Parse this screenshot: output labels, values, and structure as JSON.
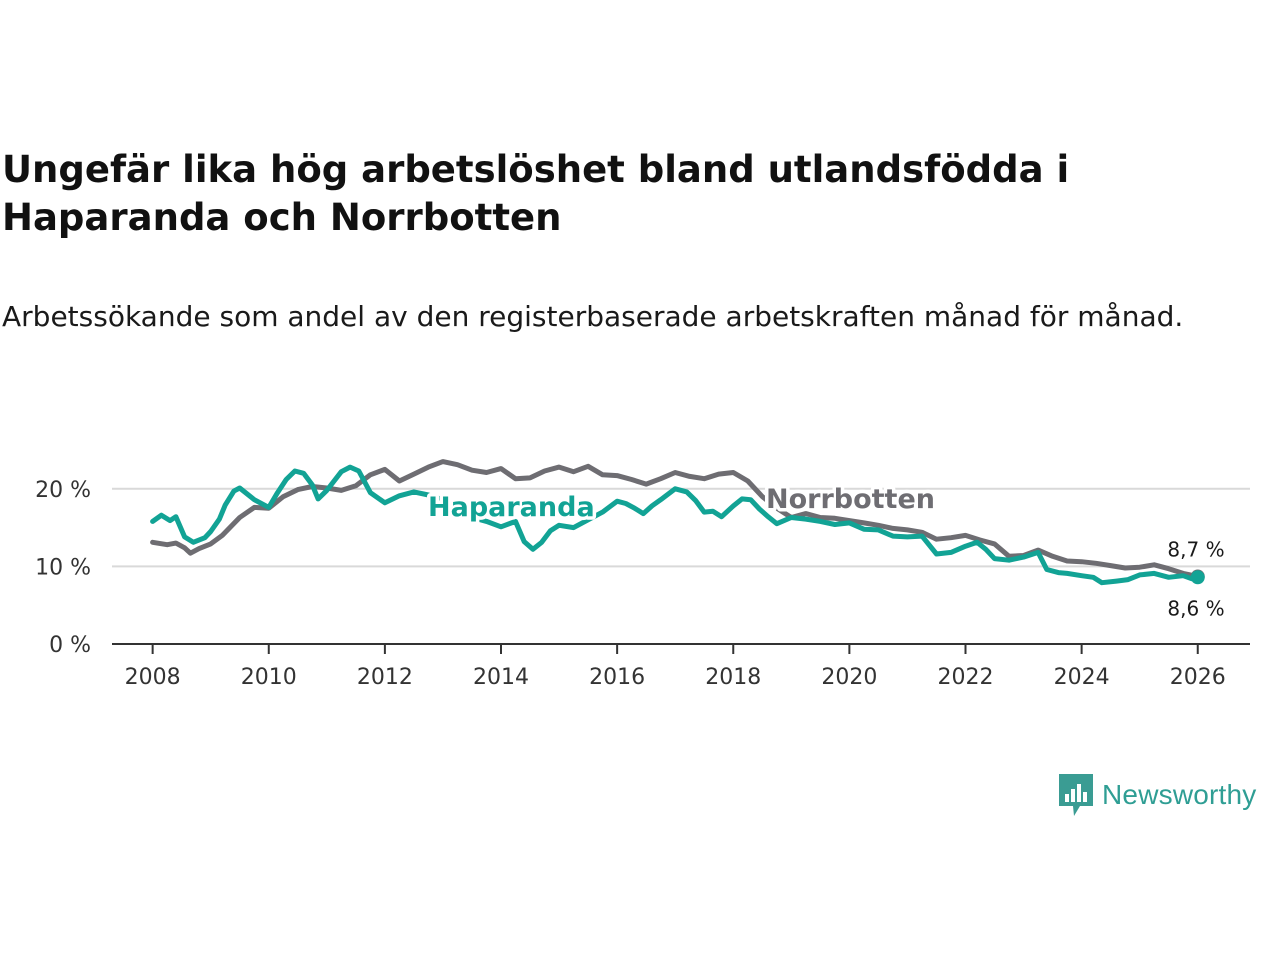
{
  "title": "Ungefär lika hög arbetslöshet bland utlandsfödda i Haparanda och Norrbotten",
  "subtitle": "Arbetssökande som andel av den registerbaserade arbetskraften månad för månad.",
  "brand": {
    "name": "Newsworthy",
    "icon": "newsworthy-logo-icon",
    "color": "#3a9c93"
  },
  "colors": {
    "haparanda": "#12a395",
    "norrbotten": "#6e6d72",
    "grid": "#d9d9d9",
    "axis": "#333333"
  },
  "chart_data": {
    "type": "line",
    "title": "Ungefär lika hög arbetslöshet bland utlandsfödda i Haparanda och Norrbotten",
    "xlabel": "",
    "ylabel": "",
    "xlim": [
      2007.3,
      2026.9
    ],
    "ylim": [
      0,
      25
    ],
    "x_ticks": [
      2008,
      2010,
      2012,
      2014,
      2016,
      2018,
      2020,
      2022,
      2024,
      2026
    ],
    "x_tick_labels": [
      "2008",
      "2010",
      "2012",
      "2014",
      "2016",
      "2018",
      "2020",
      "2022",
      "2024",
      "2026"
    ],
    "y_ticks": [
      0,
      10,
      20
    ],
    "y_tick_labels": [
      "0 %",
      "10 %",
      "20 %"
    ],
    "grid": true,
    "series": [
      {
        "name": "Norrbotten",
        "color": "#6e6d72",
        "label": "Norrbotten",
        "end_label": "8,7 %",
        "points": [
          [
            2008.0,
            13.1
          ],
          [
            2008.25,
            12.8
          ],
          [
            2008.4,
            13.0
          ],
          [
            2008.55,
            12.4
          ],
          [
            2008.65,
            11.7
          ],
          [
            2008.8,
            12.3
          ],
          [
            2009.0,
            12.9
          ],
          [
            2009.2,
            14.0
          ],
          [
            2009.5,
            16.3
          ],
          [
            2009.75,
            17.6
          ],
          [
            2010.0,
            17.5
          ],
          [
            2010.25,
            19.0
          ],
          [
            2010.5,
            19.9
          ],
          [
            2010.75,
            20.3
          ],
          [
            2011.0,
            20.1
          ],
          [
            2011.25,
            19.8
          ],
          [
            2011.5,
            20.4
          ],
          [
            2011.75,
            21.8
          ],
          [
            2012.0,
            22.5
          ],
          [
            2012.25,
            21.0
          ],
          [
            2012.5,
            21.9
          ],
          [
            2012.75,
            22.8
          ],
          [
            2013.0,
            23.5
          ],
          [
            2013.25,
            23.1
          ],
          [
            2013.5,
            22.4
          ],
          [
            2013.75,
            22.1
          ],
          [
            2014.0,
            22.6
          ],
          [
            2014.25,
            21.3
          ],
          [
            2014.5,
            21.4
          ],
          [
            2014.75,
            22.3
          ],
          [
            2015.0,
            22.8
          ],
          [
            2015.25,
            22.2
          ],
          [
            2015.5,
            22.9
          ],
          [
            2015.75,
            21.8
          ],
          [
            2016.0,
            21.7
          ],
          [
            2016.25,
            21.2
          ],
          [
            2016.5,
            20.6
          ],
          [
            2016.75,
            21.3
          ],
          [
            2017.0,
            22.1
          ],
          [
            2017.25,
            21.6
          ],
          [
            2017.5,
            21.3
          ],
          [
            2017.75,
            21.9
          ],
          [
            2018.0,
            22.1
          ],
          [
            2018.25,
            21.0
          ],
          [
            2018.5,
            19.0
          ],
          [
            2018.75,
            17.5
          ],
          [
            2019.0,
            16.3
          ],
          [
            2019.25,
            16.8
          ],
          [
            2019.5,
            16.3
          ],
          [
            2019.75,
            16.2
          ],
          [
            2020.0,
            15.9
          ],
          [
            2020.25,
            15.6
          ],
          [
            2020.5,
            15.3
          ],
          [
            2020.75,
            14.9
          ],
          [
            2021.0,
            14.7
          ],
          [
            2021.25,
            14.4
          ],
          [
            2021.5,
            13.5
          ],
          [
            2021.75,
            13.7
          ],
          [
            2022.0,
            14.0
          ],
          [
            2022.25,
            13.4
          ],
          [
            2022.5,
            12.9
          ],
          [
            2022.75,
            11.3
          ],
          [
            2023.0,
            11.4
          ],
          [
            2023.25,
            12.1
          ],
          [
            2023.5,
            11.3
          ],
          [
            2023.75,
            10.7
          ],
          [
            2024.0,
            10.6
          ],
          [
            2024.25,
            10.4
          ],
          [
            2024.5,
            10.1
          ],
          [
            2024.75,
            9.8
          ],
          [
            2025.0,
            9.9
          ],
          [
            2025.25,
            10.2
          ],
          [
            2025.5,
            9.7
          ],
          [
            2025.75,
            9.1
          ],
          [
            2026.0,
            8.7
          ]
        ]
      },
      {
        "name": "Haparanda",
        "color": "#12a395",
        "label": "Haparanda",
        "end_label": "8,6 %",
        "points": [
          [
            2008.0,
            15.8
          ],
          [
            2008.15,
            16.6
          ],
          [
            2008.3,
            15.9
          ],
          [
            2008.4,
            16.4
          ],
          [
            2008.55,
            13.8
          ],
          [
            2008.7,
            13.1
          ],
          [
            2008.9,
            13.7
          ],
          [
            2009.0,
            14.5
          ],
          [
            2009.15,
            16.1
          ],
          [
            2009.25,
            17.9
          ],
          [
            2009.4,
            19.7
          ],
          [
            2009.5,
            20.1
          ],
          [
            2009.75,
            18.6
          ],
          [
            2010.0,
            17.6
          ],
          [
            2010.15,
            19.5
          ],
          [
            2010.3,
            21.2
          ],
          [
            2010.45,
            22.3
          ],
          [
            2010.6,
            22.0
          ],
          [
            2010.75,
            20.5
          ],
          [
            2010.85,
            18.7
          ],
          [
            2011.0,
            19.8
          ],
          [
            2011.25,
            22.2
          ],
          [
            2011.4,
            22.8
          ],
          [
            2011.55,
            22.3
          ],
          [
            2011.75,
            19.5
          ],
          [
            2012.0,
            18.2
          ],
          [
            2012.25,
            19.1
          ],
          [
            2012.5,
            19.6
          ],
          [
            2012.75,
            19.2
          ],
          [
            2013.0,
            18.6
          ],
          [
            2013.25,
            17.0
          ],
          [
            2013.5,
            16.3
          ],
          [
            2013.75,
            15.8
          ],
          [
            2014.0,
            15.1
          ],
          [
            2014.25,
            15.8
          ],
          [
            2014.4,
            13.2
          ],
          [
            2014.55,
            12.2
          ],
          [
            2014.7,
            13.1
          ],
          [
            2014.85,
            14.6
          ],
          [
            2015.0,
            15.3
          ],
          [
            2015.25,
            15.0
          ],
          [
            2015.5,
            16.0
          ],
          [
            2015.75,
            17.0
          ],
          [
            2016.0,
            18.4
          ],
          [
            2016.15,
            18.1
          ],
          [
            2016.3,
            17.5
          ],
          [
            2016.45,
            16.8
          ],
          [
            2016.6,
            17.8
          ],
          [
            2016.75,
            18.6
          ],
          [
            2017.0,
            20.0
          ],
          [
            2017.2,
            19.6
          ],
          [
            2017.35,
            18.5
          ],
          [
            2017.5,
            17.0
          ],
          [
            2017.65,
            17.1
          ],
          [
            2017.8,
            16.4
          ],
          [
            2018.0,
            17.8
          ],
          [
            2018.15,
            18.7
          ],
          [
            2018.3,
            18.6
          ],
          [
            2018.45,
            17.4
          ],
          [
            2018.6,
            16.4
          ],
          [
            2018.75,
            15.5
          ],
          [
            2019.0,
            16.3
          ],
          [
            2019.25,
            16.1
          ],
          [
            2019.5,
            15.8
          ],
          [
            2019.75,
            15.4
          ],
          [
            2020.0,
            15.6
          ],
          [
            2020.25,
            14.8
          ],
          [
            2020.5,
            14.7
          ],
          [
            2020.75,
            13.9
          ],
          [
            2021.0,
            13.8
          ],
          [
            2021.25,
            13.9
          ],
          [
            2021.5,
            11.6
          ],
          [
            2021.75,
            11.8
          ],
          [
            2022.0,
            12.6
          ],
          [
            2022.2,
            13.1
          ],
          [
            2022.35,
            12.2
          ],
          [
            2022.5,
            11.0
          ],
          [
            2022.75,
            10.8
          ],
          [
            2023.0,
            11.2
          ],
          [
            2023.25,
            11.8
          ],
          [
            2023.4,
            9.6
          ],
          [
            2023.6,
            9.2
          ],
          [
            2023.75,
            9.1
          ],
          [
            2024.0,
            8.8
          ],
          [
            2024.2,
            8.6
          ],
          [
            2024.35,
            7.9
          ],
          [
            2024.6,
            8.1
          ],
          [
            2024.8,
            8.3
          ],
          [
            2025.0,
            8.9
          ],
          [
            2025.25,
            9.1
          ],
          [
            2025.5,
            8.6
          ],
          [
            2025.75,
            8.8
          ],
          [
            2025.9,
            8.4
          ],
          [
            2026.0,
            8.6
          ]
        ]
      }
    ]
  }
}
